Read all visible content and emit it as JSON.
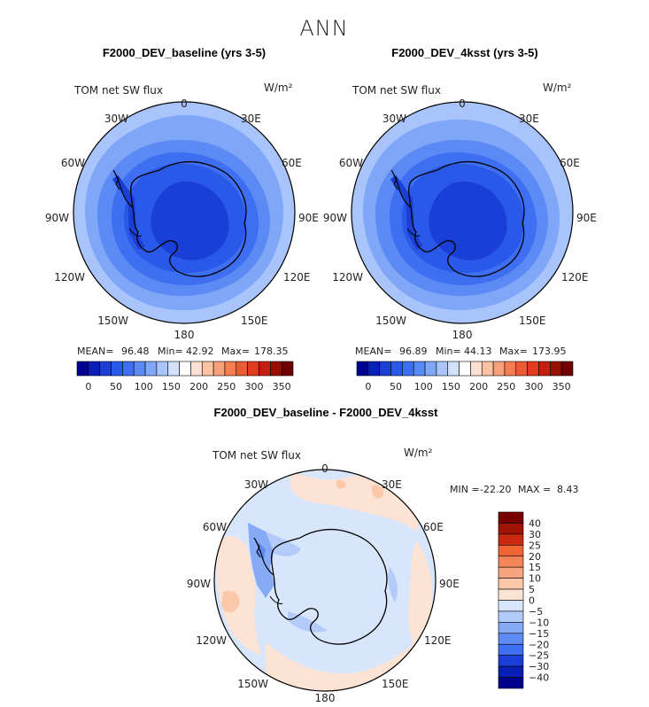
{
  "page_title": "ANN",
  "colors": {
    "land_outline": "#000000",
    "abs_scale": [
      "#000090",
      "#0a1fb8",
      "#1a3fd6",
      "#2a58e8",
      "#3e6ff2",
      "#5b8af5",
      "#7fa6f7",
      "#a8c4fa",
      "#d2e2fc",
      "#ffffff",
      "#fde0d2",
      "#fbc2a4",
      "#f8a07a",
      "#f67c52",
      "#f05a32",
      "#e23a1c",
      "#c41e0e",
      "#961004",
      "#700000"
    ],
    "diff_scale": [
      "#00008a",
      "#0a1fb5",
      "#1a3fd4",
      "#2a58e8",
      "#3f6ff2",
      "#5f8cf4",
      "#86aaf6",
      "#b2cbf9",
      "#d8e6fc",
      "#ffffff",
      "#fde3d4",
      "#fbc8aa",
      "#f8a47e",
      "#f58458",
      "#f06434",
      "#e0441c",
      "#c82a10",
      "#a01404",
      "#780000"
    ]
  },
  "chart_data": [
    {
      "type": "heatmap",
      "projection": "south-polar-stereographic",
      "title": "F2000_DEV_baseline (yrs 3-5)",
      "variable_label": "TOM net SW flux",
      "units": "W/m²",
      "longitude_labels": [
        "0",
        "30E",
        "60E",
        "90E",
        "120E",
        "150E",
        "180",
        "150W",
        "120W",
        "90W",
        "60W",
        "30W"
      ],
      "stats": {
        "mean_label": "MEAN=",
        "mean": "96.48",
        "min_label": "Min=",
        "min": "42.92",
        "max_label": "Max=",
        "max": "178.35"
      },
      "colorbar": {
        "orientation": "horizontal",
        "tick_labels": [
          "0",
          "50",
          "100",
          "150",
          "200",
          "250",
          "300",
          "350"
        ],
        "range": [
          0,
          350
        ]
      }
    },
    {
      "type": "heatmap",
      "projection": "south-polar-stereographic",
      "title": "F2000_DEV_4ksst (yrs 3-5)",
      "variable_label": "TOM net SW flux",
      "units": "W/m²",
      "longitude_labels": [
        "0",
        "30E",
        "60E",
        "90E",
        "120E",
        "150E",
        "180",
        "150W",
        "120W",
        "90W",
        "60W",
        "30W"
      ],
      "stats": {
        "mean_label": "MEAN=",
        "mean": "96.89",
        "min_label": "Min=",
        "min": "44.13",
        "max_label": "Max=",
        "max": "173.95"
      },
      "colorbar": {
        "orientation": "horizontal",
        "tick_labels": [
          "0",
          "50",
          "100",
          "150",
          "200",
          "250",
          "300",
          "350"
        ],
        "range": [
          0,
          350
        ]
      }
    },
    {
      "type": "heatmap",
      "projection": "south-polar-stereographic",
      "title": "F2000_DEV_baseline - F2000_DEV_4ksst",
      "variable_label": "TOM net SW flux",
      "units": "W/m²",
      "longitude_labels": [
        "0",
        "30E",
        "60E",
        "90E",
        "120E",
        "150E",
        "180",
        "150W",
        "120W",
        "90W",
        "60W",
        "30W"
      ],
      "stats": {
        "min_label": "MIN =",
        "min": "-22.20",
        "max_label": "MAX =",
        "max": "8.43"
      },
      "colorbar": {
        "orientation": "vertical",
        "tick_labels": [
          "40",
          "30",
          "25",
          "20",
          "15",
          "10",
          "5",
          "0",
          "−5",
          "−10",
          "−15",
          "−20",
          "−25",
          "−30",
          "−40"
        ],
        "range": [
          -40,
          40
        ]
      }
    }
  ]
}
